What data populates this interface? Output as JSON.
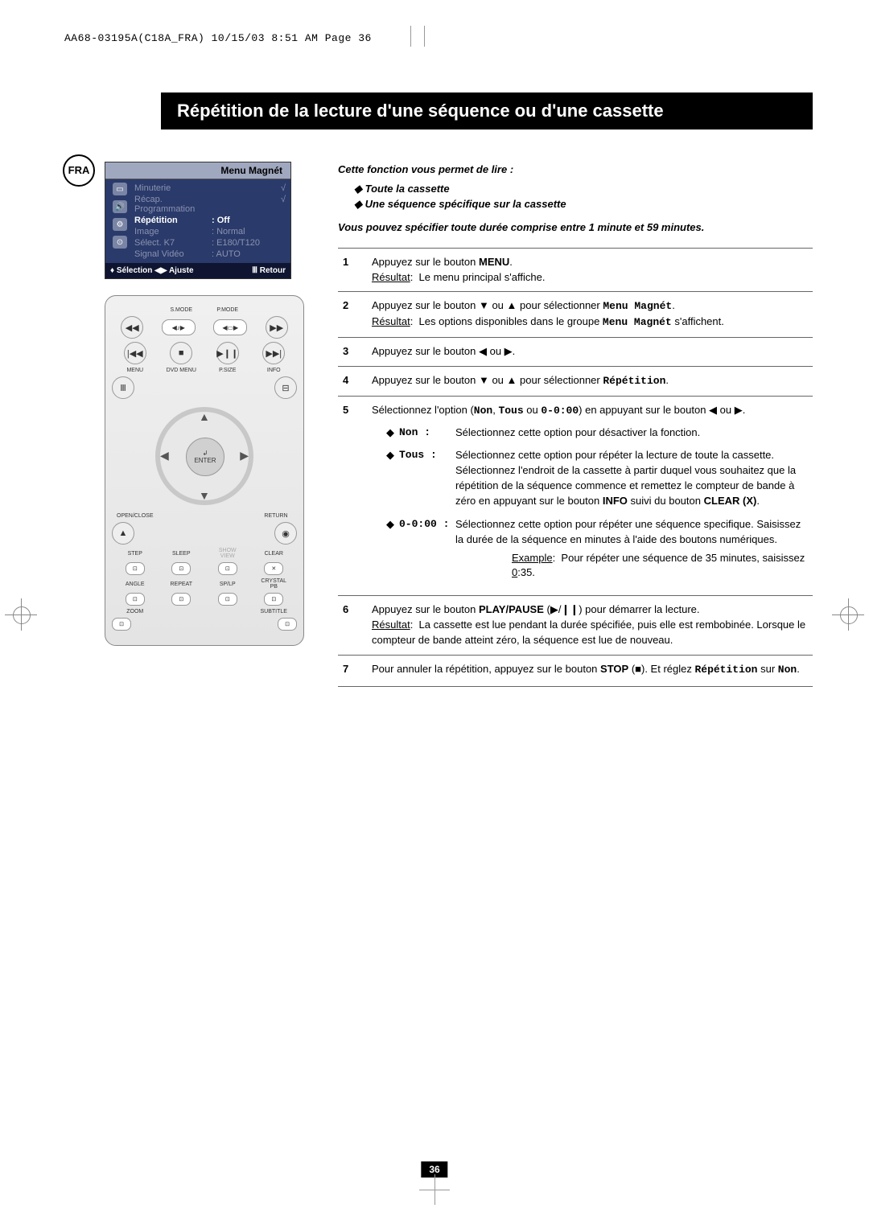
{
  "header_line": "AA68-03195A(C18A_FRA)  10/15/03  8:51 AM  Page 36",
  "lang_badge": "FRA",
  "title": "Répétition de la lecture d'une séquence ou d'une cassette",
  "osd": {
    "title": "Menu Magnét",
    "items": [
      {
        "label": "Minuterie",
        "value": "",
        "arrow": "√",
        "hl": false
      },
      {
        "label": "Récap. Programmation",
        "value": "",
        "arrow": "√",
        "hl": false
      },
      {
        "label": "Répétition",
        "value": ": Off",
        "arrow": "",
        "hl": true
      },
      {
        "label": "Image",
        "value": ": Normal",
        "arrow": "",
        "hl": false
      },
      {
        "label": "Sélect. K7",
        "value": ": E180/T120",
        "arrow": "",
        "hl": false
      },
      {
        "label": "Signal Vidéo",
        "value": ": AUTO",
        "arrow": "",
        "hl": false
      }
    ],
    "footer_left": "Sélection",
    "footer_mid": "Ajuste",
    "footer_right": "Retour"
  },
  "remote": {
    "top_labels": [
      "",
      "S.MODE",
      "P.MODE",
      ""
    ],
    "row2": [
      "MENU",
      "DVD MENU",
      "P.SIZE",
      "INFO"
    ],
    "enter": "ENTER",
    "open_close": "OPEN/CLOSE",
    "return": "RETURN",
    "row_step": [
      "STEP",
      "SLEEP",
      "SHOW VIEW",
      "CLEAR"
    ],
    "row_angle": [
      "ANGLE",
      "REPEAT",
      "SP/LP",
      "CRYSTAL PB"
    ],
    "row_zoom": [
      "ZOOM",
      "",
      "",
      "SUBTITLE"
    ]
  },
  "intro": {
    "lead": "Cette fonction vous permet de lire :",
    "bullets": [
      "Toute la cassette",
      "Une séquence spécifique sur la cassette"
    ]
  },
  "intro2": "Vous pouvez spécifier toute durée comprise entre 1 minute et 59 minutes.",
  "steps": [
    {
      "n": "1",
      "html": "Appuyez sur le bouton <b>MENU</b>.<br><u>Résultat</u>:&nbsp;&nbsp;Le menu principal s'affiche."
    },
    {
      "n": "2",
      "html": "Appuyez sur le bouton ▼ ou ▲ pour sélectionner <span class='mono'>Menu Magnét</span>.<br><u>Résultat</u>:&nbsp;&nbsp;Les options disponibles dans le groupe <span class='mono'>Menu Magnét</span> s'affichent."
    },
    {
      "n": "3",
      "html": "Appuyez sur le bouton ◀ ou ▶."
    },
    {
      "n": "4",
      "html": "Appuyez sur le bouton ▼ ou ▲ pour sélectionner <span class='mono'>Répétition</span>."
    },
    {
      "n": "5",
      "html": "Sélectionnez l'option (<span class='mono'>Non</span>, <span class='mono'>Tous</span> ou <span class='mono'>0-0:00</span>) en appuyant sur le bouton ◀ ou ▶.",
      "options": [
        {
          "key": "Non",
          "desc": "Sélectionnez cette option pour désactiver la fonction."
        },
        {
          "key": "Tous",
          "desc": "Sélectionnez cette option pour répéter la lecture de toute la cassette. Sélectionnez l'endroit de la cassette à partir duquel vous souhaitez que la répétition de la séquence commence et remettez le compteur de bande à zéro en appuyant sur le bouton <b>INFO</b> suivi du bouton <b>CLEAR (X)</b>."
        },
        {
          "key": "0-0:00",
          "desc": "Sélectionnez cette option pour répéter une séquence specifique. Saisissez la durée de la séquence en minutes à l'aide des boutons numériques.",
          "example_label": "Example",
          "example_text": "Pour répéter une séquence de 35 minutes, saisissez <u>0</u>:35."
        }
      ]
    },
    {
      "n": "6",
      "html": "Appuyez sur le bouton <b>PLAY/PAUSE</b> (▶/❙❙) pour démarrer la lecture.<br><u>Résultat</u>:&nbsp;&nbsp;La cassette est lue pendant la durée spécifiée, puis elle est rembobinée. Lorsque le compteur de bande atteint zéro, la séquence est lue de nouveau."
    },
    {
      "n": "7",
      "html": "Pour annuler la répétition, appuyez sur le bouton <b>STOP</b> (■). Et réglez <span class='mono'>Répétition</span> sur <span class='mono'>Non</span>."
    }
  ],
  "page_number": "36",
  "colors": {
    "osd_bg": "#2a3a6a",
    "osd_title_bg": "#a0a8c0",
    "osd_footer_bg": "#0f1530",
    "osd_dim": "#8a92b0"
  }
}
